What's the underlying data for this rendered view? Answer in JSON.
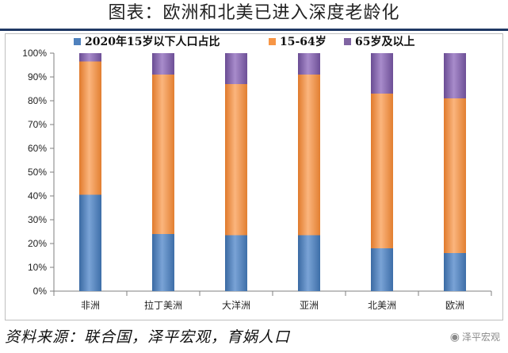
{
  "header": {
    "title": "图表：欧洲和北美已进入深度老龄化"
  },
  "footer": {
    "source": "资料来源：联合国，泽平宏观，育娲人口",
    "watermark": "泽平宏观",
    "watermark_icon": "wechat-icon"
  },
  "chart_data": {
    "type": "bar",
    "stacked": true,
    "title": "",
    "xlabel": "",
    "ylabel": "",
    "ylim": [
      0,
      100
    ],
    "yticks": [
      "0%",
      "10%",
      "20%",
      "30%",
      "40%",
      "50%",
      "60%",
      "70%",
      "80%",
      "90%",
      "100%"
    ],
    "categories": [
      "非洲",
      "拉丁美洲",
      "大洋洲",
      "亚洲",
      "北美洲",
      "欧洲"
    ],
    "legend_position": "top",
    "grid": false,
    "series": [
      {
        "name": "2020年15岁以下人口占比",
        "color": "#4f81bd",
        "values": [
          40.5,
          24,
          23.5,
          23.5,
          18,
          16
        ]
      },
      {
        "name": "15-64岁",
        "color": "#f79646",
        "values": [
          56,
          67,
          63.5,
          67.5,
          65,
          65
        ]
      },
      {
        "name": "65岁及以上",
        "color": "#8064a2",
        "values": [
          3.5,
          9,
          13,
          9,
          17,
          19
        ]
      }
    ]
  }
}
